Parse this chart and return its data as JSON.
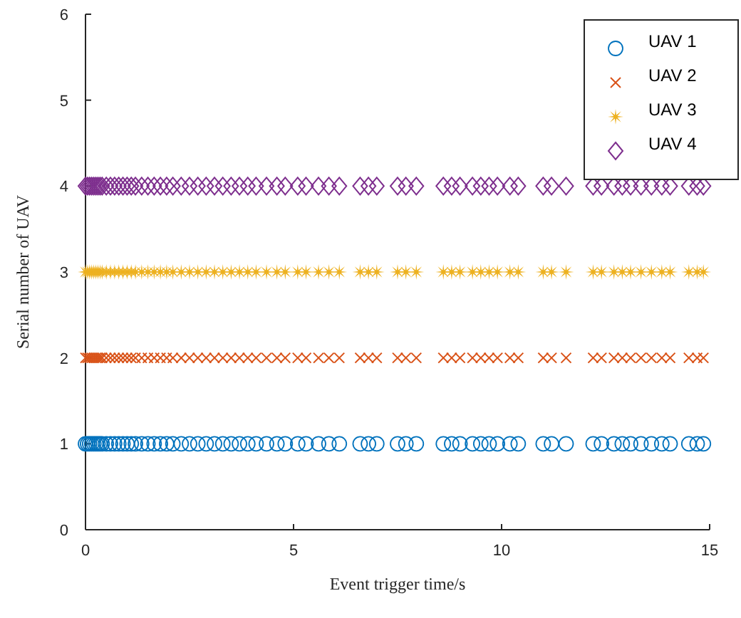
{
  "chart_data": {
    "type": "scatter",
    "xlabel": "Event trigger time/s",
    "ylabel": "Serial number of UAV",
    "x": [
      0,
      0.05,
      0.1,
      0.15,
      0.2,
      0.25,
      0.3,
      0.35,
      0.4,
      0.5,
      0.6,
      0.7,
      0.8,
      0.9,
      1.0,
      1.1,
      1.2,
      1.35,
      1.5,
      1.65,
      1.8,
      1.95,
      2.1,
      2.3,
      2.5,
      2.7,
      2.9,
      3.1,
      3.3,
      3.5,
      3.7,
      3.9,
      4.1,
      4.35,
      4.6,
      4.8,
      5.1,
      5.3,
      5.6,
      5.85,
      6.1,
      6.6,
      6.8,
      7.0,
      7.5,
      7.7,
      7.95,
      8.6,
      8.8,
      9.0,
      9.3,
      9.5,
      9.7,
      9.9,
      10.2,
      10.4,
      11.0,
      11.2,
      11.55,
      12.2,
      12.4,
      12.7,
      12.9,
      13.1,
      13.35,
      13.6,
      13.85,
      14.05,
      14.5,
      14.7,
      14.85
    ],
    "series": [
      {
        "name": "UAV 1",
        "color": "#0072bd",
        "marker": "circle",
        "values": [
          1,
          1,
          1,
          1,
          1,
          1,
          1,
          1,
          1,
          1,
          1,
          1,
          1,
          1,
          1,
          1,
          1,
          1,
          1,
          1,
          1,
          1,
          1,
          1,
          1,
          1,
          1,
          1,
          1,
          1,
          1,
          1,
          1,
          1,
          1,
          1,
          1,
          1,
          1,
          1,
          1,
          1,
          1,
          1,
          1,
          1,
          1,
          1,
          1,
          1,
          1,
          1,
          1,
          1,
          1,
          1,
          1,
          1,
          1,
          1,
          1,
          1,
          1,
          1,
          1,
          1,
          1,
          1,
          1,
          1,
          1
        ]
      },
      {
        "name": "UAV 2",
        "color": "#d95319",
        "marker": "cross",
        "values": [
          2,
          2,
          2,
          2,
          2,
          2,
          2,
          2,
          2,
          2,
          2,
          2,
          2,
          2,
          2,
          2,
          2,
          2,
          2,
          2,
          2,
          2,
          2,
          2,
          2,
          2,
          2,
          2,
          2,
          2,
          2,
          2,
          2,
          2,
          2,
          2,
          2,
          2,
          2,
          2,
          2,
          2,
          2,
          2,
          2,
          2,
          2,
          2,
          2,
          2,
          2,
          2,
          2,
          2,
          2,
          2,
          2,
          2,
          2,
          2,
          2,
          2,
          2,
          2,
          2,
          2,
          2,
          2,
          2,
          2,
          2
        ]
      },
      {
        "name": "UAV 3",
        "color": "#edb120",
        "marker": "star",
        "values": [
          3,
          3,
          3,
          3,
          3,
          3,
          3,
          3,
          3,
          3,
          3,
          3,
          3,
          3,
          3,
          3,
          3,
          3,
          3,
          3,
          3,
          3,
          3,
          3,
          3,
          3,
          3,
          3,
          3,
          3,
          3,
          3,
          3,
          3,
          3,
          3,
          3,
          3,
          3,
          3,
          3,
          3,
          3,
          3,
          3,
          3,
          3,
          3,
          3,
          3,
          3,
          3,
          3,
          3,
          3,
          3,
          3,
          3,
          3,
          3,
          3,
          3,
          3,
          3,
          3,
          3,
          3,
          3,
          3,
          3,
          3
        ]
      },
      {
        "name": "UAV 4",
        "color": "#7e2f8e",
        "marker": "diamond",
        "values": [
          4,
          4,
          4,
          4,
          4,
          4,
          4,
          4,
          4,
          4,
          4,
          4,
          4,
          4,
          4,
          4,
          4,
          4,
          4,
          4,
          4,
          4,
          4,
          4,
          4,
          4,
          4,
          4,
          4,
          4,
          4,
          4,
          4,
          4,
          4,
          4,
          4,
          4,
          4,
          4,
          4,
          4,
          4,
          4,
          4,
          4,
          4,
          4,
          4,
          4,
          4,
          4,
          4,
          4,
          4,
          4,
          4,
          4,
          4,
          4,
          4,
          4,
          4,
          4,
          4,
          4,
          4,
          4,
          4,
          4,
          4
        ]
      }
    ],
    "xlim": [
      0,
      15
    ],
    "xticks": [
      0,
      5,
      10,
      15
    ],
    "ylim": [
      0,
      6
    ],
    "yticks": [
      0,
      1,
      2,
      3,
      4,
      5,
      6
    ],
    "legend": "top right",
    "grid": false
  }
}
